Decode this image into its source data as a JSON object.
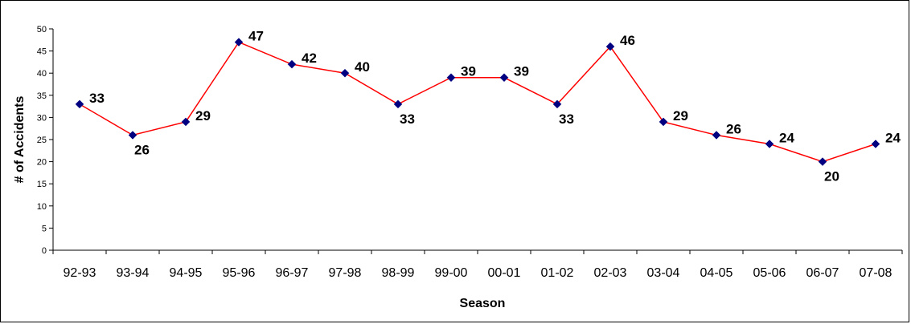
{
  "chart_data": {
    "type": "line",
    "title": "",
    "xlabel": "Season",
    "ylabel": "# of Accidents",
    "ylim": [
      0,
      50
    ],
    "yticks": [
      0,
      5,
      10,
      15,
      20,
      25,
      30,
      35,
      40,
      45,
      50
    ],
    "grid": false,
    "legend": "none",
    "categories": [
      "92-93",
      "93-94",
      "94-95",
      "95-96",
      "96-97",
      "97-98",
      "98-99",
      "99-00",
      "00-01",
      "01-02",
      "02-03",
      "03-04",
      "04-05",
      "05-06",
      "06-07",
      "07-08"
    ],
    "series": [
      {
        "values": [
          33,
          26,
          29,
          47,
          42,
          40,
          33,
          39,
          39,
          33,
          46,
          29,
          26,
          24,
          20,
          24
        ],
        "line_color": "#ff0000",
        "marker_color": "#000080"
      }
    ],
    "data_labels": [
      "33",
      "26",
      "29",
      "47",
      "42",
      "40",
      "33",
      "39",
      "39",
      "33",
      "46",
      "29",
      "26",
      "24",
      "20",
      "24"
    ]
  }
}
